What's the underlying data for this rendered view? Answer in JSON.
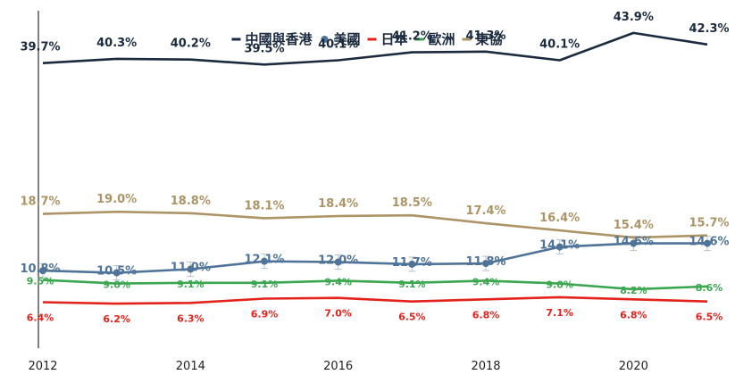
{
  "chart_data": {
    "type": "line",
    "x": [
      2012,
      2013,
      2014,
      2015,
      2016,
      2017,
      2018,
      2019,
      2020,
      2021
    ],
    "x_ticks": [
      "2012",
      "2014",
      "2016",
      "2018",
      "2020"
    ],
    "ylim": [
      0,
      47
    ],
    "grid": false,
    "legend_position": "top-center",
    "series": [
      {
        "name": "中國與香港",
        "color": "#1b2a3e",
        "label_color": "#1b2a3e",
        "marker": "none",
        "error_bars": false,
        "values": [
          39.7,
          40.3,
          40.2,
          39.5,
          40.1,
          41.2,
          41.3,
          40.1,
          43.9,
          42.3
        ],
        "labels": [
          "39.7%",
          "40.3%",
          "40.2%",
          "39.5%",
          "40.1%",
          "41.2%",
          "41.3%",
          "40.1%",
          "43.9%",
          "42.3%"
        ]
      },
      {
        "name": "美國",
        "color": "#4f7399",
        "label_color": "#4f7399",
        "marker": "circle",
        "error_bars": true,
        "values": [
          10.8,
          10.5,
          11.0,
          12.1,
          12.0,
          11.7,
          11.8,
          14.1,
          14.6,
          14.6
        ],
        "labels": [
          "10.8%",
          "10.5%",
          "11.0%",
          "12.1%",
          "12.0%",
          "11.7%",
          "11.8%",
          "14.1%",
          "14.6%",
          "14.6%"
        ]
      },
      {
        "name": "日本",
        "color": "#e3221b",
        "label_color": "#e3221b",
        "marker": "none",
        "error_bars": false,
        "values": [
          6.4,
          6.2,
          6.3,
          6.9,
          7.0,
          6.5,
          6.8,
          7.1,
          6.8,
          6.5
        ],
        "labels": [
          "6.4%",
          "6.2%",
          "6.3%",
          "6.9%",
          "7.0%",
          "6.5%",
          "6.8%",
          "7.1%",
          "6.8%",
          "6.5%"
        ]
      },
      {
        "name": "歐洲",
        "color": "#3aa64f",
        "label_color": "#3aa64f",
        "marker": "none",
        "error_bars": false,
        "values": [
          9.5,
          9.0,
          9.1,
          9.1,
          9.4,
          9.1,
          9.4,
          9.0,
          8.2,
          8.6
        ],
        "labels": [
          "9.5%",
          "9.0%",
          "9.1%",
          "9.1%",
          "9.4%",
          "9.1%",
          "9.4%",
          "9.0%",
          "8.2%",
          "8.6%"
        ]
      },
      {
        "name": "東協",
        "color": "#ad9467",
        "label_color": "#ad9467",
        "marker": "none",
        "error_bars": false,
        "values": [
          18.7,
          19.0,
          18.8,
          18.1,
          18.4,
          18.5,
          17.4,
          16.4,
          15.4,
          15.7
        ],
        "labels": [
          "18.7%",
          "19.0%",
          "18.8%",
          "18.1%",
          "18.4%",
          "18.5%",
          "17.4%",
          "16.4%",
          "15.4%",
          "15.7%"
        ]
      }
    ]
  }
}
